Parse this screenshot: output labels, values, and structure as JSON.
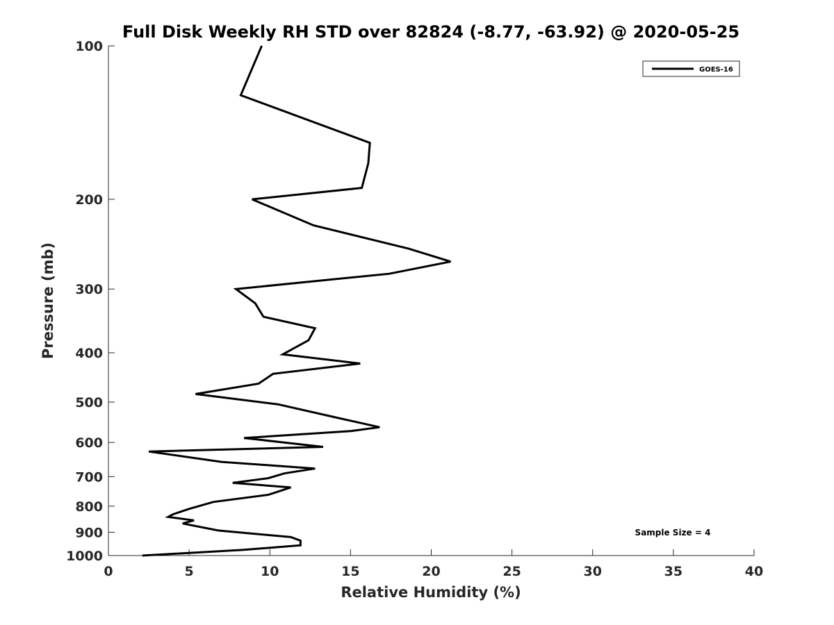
{
  "chart_data": {
    "type": "line",
    "title": "Full Disk Weekly RH STD over 82824 (-8.77, -63.92) @ 2020-05-25",
    "xlabel": "Relative Humidity (%)",
    "ylabel": "Pressure (mb)",
    "xlim": [
      0,
      40
    ],
    "ylim": [
      100,
      1000
    ],
    "y_scale": "log",
    "y_reversed": true,
    "xticks": [
      0,
      5,
      10,
      15,
      20,
      25,
      30,
      35,
      40
    ],
    "yticks": [
      100,
      200,
      300,
      400,
      500,
      600,
      700,
      800,
      900,
      1000
    ],
    "grid": false,
    "legend_position": "top-right",
    "annotation": "Sample Size = 4",
    "series": [
      {
        "name": "GOES-16",
        "color": "#000000",
        "points": [
          [
            9.5,
            100
          ],
          [
            8.2,
            125
          ],
          [
            16.2,
            155
          ],
          [
            16.1,
            170
          ],
          [
            15.7,
            190
          ],
          [
            8.9,
            200
          ],
          [
            12.7,
            225
          ],
          [
            18.6,
            250
          ],
          [
            21.2,
            265
          ],
          [
            17.4,
            280
          ],
          [
            7.9,
            300
          ],
          [
            9.1,
            320
          ],
          [
            9.6,
            340
          ],
          [
            12.8,
            358
          ],
          [
            12.4,
            378
          ],
          [
            10.8,
            403
          ],
          [
            15.6,
            420
          ],
          [
            10.2,
            440
          ],
          [
            9.3,
            460
          ],
          [
            5.4,
            482
          ],
          [
            10.5,
            505
          ],
          [
            14.0,
            535
          ],
          [
            16.8,
            560
          ],
          [
            15.0,
            570
          ],
          [
            8.4,
            588
          ],
          [
            13.3,
            612
          ],
          [
            2.5,
            625
          ],
          [
            7.0,
            655
          ],
          [
            12.8,
            675
          ],
          [
            10.9,
            690
          ],
          [
            9.9,
            705
          ],
          [
            7.7,
            720
          ],
          [
            11.3,
            735
          ],
          [
            9.9,
            760
          ],
          [
            6.5,
            785
          ],
          [
            5.0,
            810
          ],
          [
            4.0,
            830
          ],
          [
            3.7,
            840
          ],
          [
            5.3,
            853
          ],
          [
            4.6,
            865
          ],
          [
            6.8,
            893
          ],
          [
            11.3,
            920
          ],
          [
            11.9,
            935
          ],
          [
            11.9,
            955
          ],
          [
            8.3,
            975
          ],
          [
            2.1,
            1000
          ]
        ]
      }
    ]
  }
}
